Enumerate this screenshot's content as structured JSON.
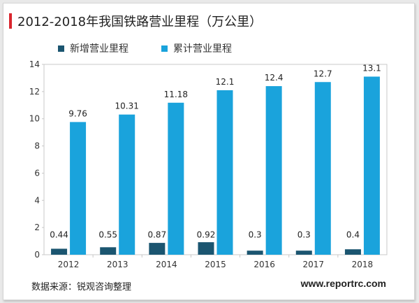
{
  "chart_data": {
    "type": "bar",
    "title": "2012-2018年我国铁路营业里程（万公里）",
    "categories": [
      "2012",
      "2013",
      "2014",
      "2015",
      "2016",
      "2017",
      "2018"
    ],
    "series": [
      {
        "name": "新增营业里程",
        "values": [
          0.44,
          0.55,
          0.87,
          0.92,
          0.3,
          0.3,
          0.4
        ],
        "labels": [
          "0.44",
          "0.55",
          "0.87",
          "0.92",
          "0.3",
          "0.3",
          "0.4"
        ],
        "color": "#1b5570"
      },
      {
        "name": "累计营业里程",
        "values": [
          9.76,
          10.31,
          11.18,
          12.1,
          12.4,
          12.7,
          13.1
        ],
        "labels": [
          "9.76",
          "10.31",
          "11.18",
          "12.1",
          "12.4",
          "12.7",
          "13.1"
        ],
        "color": "#1aa3dc"
      }
    ],
    "yticks": [
      "0",
      "2",
      "4",
      "6",
      "8",
      "10",
      "12",
      "14"
    ],
    "ylim": [
      0,
      14
    ],
    "xlabel": "",
    "ylabel": "",
    "legend_position": "top-left",
    "grid": false
  },
  "footer": {
    "source": "数据来源：锐观咨询整理",
    "website": "www.reportrc.com"
  }
}
